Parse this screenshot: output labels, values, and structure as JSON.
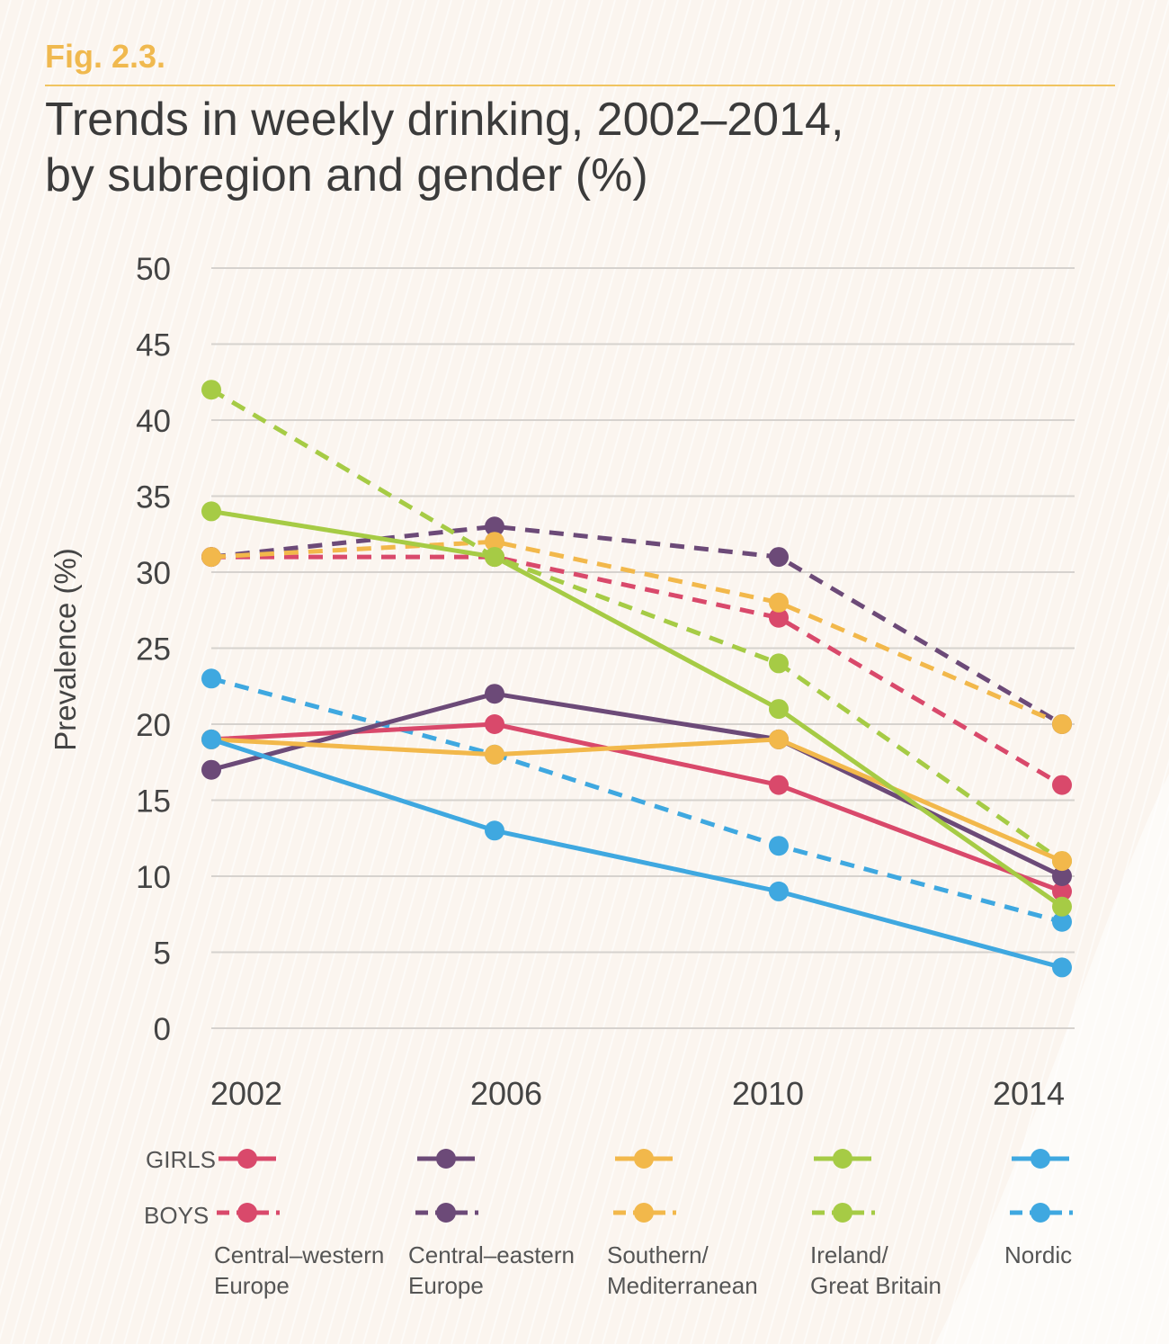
{
  "figure": {
    "label": "Fig. 2.3.",
    "title_line1": "Trends in weekly drinking, 2002–2014,",
    "title_line2": "by subregion and gender (%)"
  },
  "legend": {
    "girls_label": "GIRLS",
    "boys_label": "BOYS",
    "regions": [
      {
        "line1": "Central–western",
        "line2": "Europe",
        "color": "#d9496b"
      },
      {
        "line1": "Central–eastern",
        "line2": "Europe",
        "color": "#6c4a78"
      },
      {
        "line1": "Southern/",
        "line2": "Mediterranean",
        "color": "#f2b84b"
      },
      {
        "line1": "Ireland/",
        "line2": "Great Britain",
        "color": "#a6cb45"
      },
      {
        "line1": "Nordic",
        "line2": "",
        "color": "#3fa8e0"
      }
    ]
  },
  "chart_data": {
    "type": "line",
    "title": "Trends in weekly drinking, 2002–2014, by subregion and gender (%)",
    "xlabel": "",
    "ylabel": "Prevalence (%)",
    "x": [
      "2002",
      "2006",
      "2010",
      "2014"
    ],
    "ylim": [
      0,
      50
    ],
    "yticks": [
      0,
      5,
      10,
      15,
      20,
      25,
      30,
      35,
      40,
      45,
      50
    ],
    "grid": true,
    "series": [
      {
        "name": "Central–western Europe (girls)",
        "gender": "girls",
        "color": "#d9496b",
        "values": [
          19,
          20,
          16,
          9
        ]
      },
      {
        "name": "Central–eastern Europe (girls)",
        "gender": "girls",
        "color": "#6c4a78",
        "values": [
          17,
          22,
          19,
          10
        ]
      },
      {
        "name": "Southern/Mediterranean (girls)",
        "gender": "girls",
        "color": "#f2b84b",
        "values": [
          19,
          18,
          19,
          11
        ]
      },
      {
        "name": "Ireland/Great Britain (girls)",
        "gender": "girls",
        "color": "#a6cb45",
        "values": [
          34,
          31,
          21,
          8
        ]
      },
      {
        "name": "Nordic (girls)",
        "gender": "girls",
        "color": "#3fa8e0",
        "values": [
          19,
          13,
          9,
          4
        ]
      },
      {
        "name": "Central–western Europe (boys)",
        "gender": "boys",
        "color": "#d9496b",
        "values": [
          31,
          31,
          27,
          16
        ]
      },
      {
        "name": "Central–eastern Europe (boys)",
        "gender": "boys",
        "color": "#6c4a78",
        "values": [
          31,
          33,
          31,
          20
        ]
      },
      {
        "name": "Southern/Mediterranean (boys)",
        "gender": "boys",
        "color": "#f2b84b",
        "values": [
          31,
          32,
          28,
          20
        ]
      },
      {
        "name": "Ireland/Great Britain (boys)",
        "gender": "boys",
        "color": "#a6cb45",
        "values": [
          42,
          31,
          24,
          11
        ]
      },
      {
        "name": "Nordic (boys)",
        "gender": "boys",
        "color": "#3fa8e0",
        "values": [
          23,
          18,
          12,
          7
        ]
      }
    ]
  }
}
